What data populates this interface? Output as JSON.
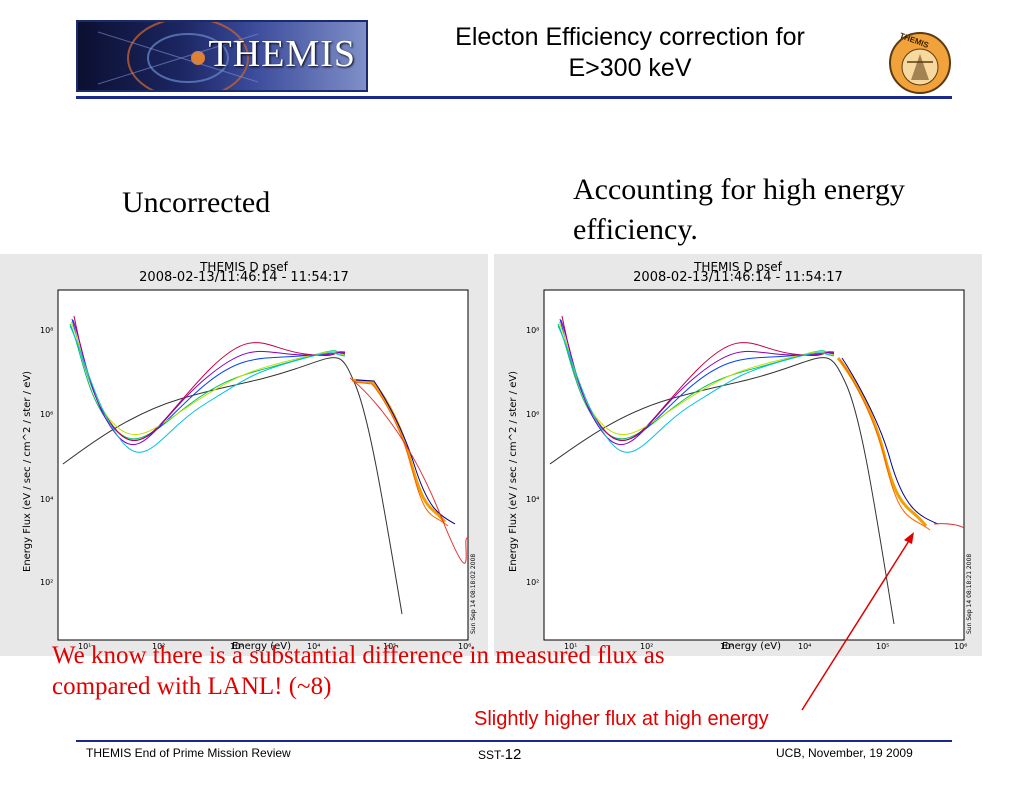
{
  "header": {
    "logo_text": "THEMIS",
    "title_line1": "Electon Efficiency correction for",
    "title_line2": "E>300 keV",
    "badge_text": "THEMIS"
  },
  "captions": {
    "left": "Uncorrected",
    "right": "Accounting for high energy efficiency."
  },
  "plots": [
    {
      "title": "THEMIS D  psef",
      "subtitle": "2008-02-13/11:46:14 - 11:54:17",
      "ylabel": "Energy Flux (eV / sec / cm^2 / ster / eV)",
      "xlabel": "Energy  (eV)",
      "x_ticks": [
        "10¹",
        "10²",
        "10³",
        "10⁴",
        "10⁵",
        "10⁶"
      ],
      "y_ticks": [
        "10⁸",
        "10⁶",
        "10⁴",
        "10²"
      ],
      "stamp": "Sun Sep 14 08:18:02 2008"
    },
    {
      "title": "THEMIS D  psef",
      "subtitle": "2008-02-13/11:46:14 - 11:54:17",
      "ylabel": "Energy Flux (eV / sec / cm^2 / ster / eV)",
      "xlabel": "Energy  (eV)",
      "x_ticks": [
        "10¹",
        "10²",
        "10³",
        "10⁴",
        "10⁵",
        "10⁶"
      ],
      "y_ticks": [
        "10⁸",
        "10⁶",
        "10⁴",
        "10²"
      ],
      "stamp": "Sun Sep 14 08:18:21 2008"
    }
  ],
  "notes": {
    "main": "We know there is a substantial difference in measured flux as compared with LANL!  (~8)",
    "arrow_label": "Slightly higher flux at high energy"
  },
  "footer": {
    "left": "THEMIS End of Prime Mission Review",
    "center_prefix": "SST-",
    "center_num": "12",
    "right": "UCB, November, 19 2009"
  },
  "colors": {
    "rule": "#1a2a8c",
    "note": "#e00000"
  }
}
